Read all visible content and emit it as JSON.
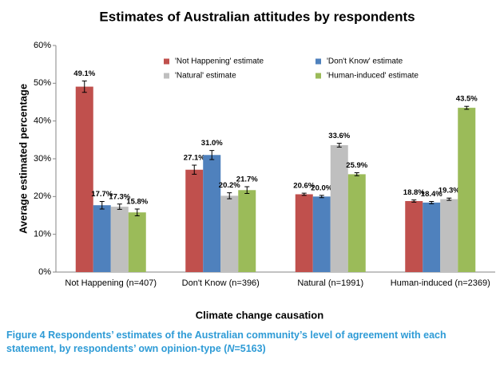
{
  "chart_data": {
    "type": "bar",
    "title": "Estimates of Australian attitudes by respondents",
    "xlabel": "Climate change causation",
    "ylabel": "Average estimated percentage",
    "categories": [
      "Not Happening (n=407)",
      "Don't Know (n=396)",
      "Natural (n=1991)",
      "Human-induced (n=2369)"
    ],
    "series": [
      {
        "name": "'Not Happening' estimate",
        "color": "#c0504d",
        "values": [
          49.1,
          27.1,
          20.6,
          18.8
        ],
        "value_labels": [
          "49.1%",
          "27.1%",
          "20.6%",
          "18.8%"
        ],
        "errors": [
          1.5,
          1.2,
          0.3,
          0.3
        ]
      },
      {
        "name": "'Don't Know' estimate",
        "color": "#4f81bd",
        "values": [
          17.7,
          31.0,
          20.0,
          18.4
        ],
        "value_labels": [
          "17.7%",
          "31.0%",
          "20.0%",
          "18.4%"
        ],
        "errors": [
          1.0,
          1.2,
          0.3,
          0.3
        ]
      },
      {
        "name": "'Natural' estimate",
        "color": "#bfbfbf",
        "values": [
          17.3,
          20.2,
          33.6,
          19.3
        ],
        "value_labels": [
          "17.3%",
          "20.2%",
          "33.6%",
          "19.3%"
        ],
        "errors": [
          0.7,
          0.8,
          0.5,
          0.3
        ]
      },
      {
        "name": "'Human-induced' estimate",
        "color": "#9bbb59",
        "values": [
          15.8,
          21.7,
          25.9,
          43.5
        ],
        "value_labels": [
          "15.8%",
          "21.7%",
          "25.9%",
          "43.5%"
        ],
        "errors": [
          0.9,
          0.9,
          0.4,
          0.4
        ]
      }
    ],
    "ylim": [
      0,
      60
    ],
    "yticks": [
      {
        "value": 0,
        "label": "0%"
      },
      {
        "value": 10,
        "label": "10%"
      },
      {
        "value": 20,
        "label": "20%"
      },
      {
        "value": 30,
        "label": "30%"
      },
      {
        "value": 40,
        "label": "40%"
      },
      {
        "value": 50,
        "label": "50%"
      },
      {
        "value": 60,
        "label": "60%"
      }
    ],
    "grid": false,
    "legend": "top"
  },
  "caption": [
    "Figure 4 Respondents’ estimates of the Australian community’s level of agreement with each statement, by respondents’ own opinion-type (",
    "N",
    "=5163)"
  ]
}
